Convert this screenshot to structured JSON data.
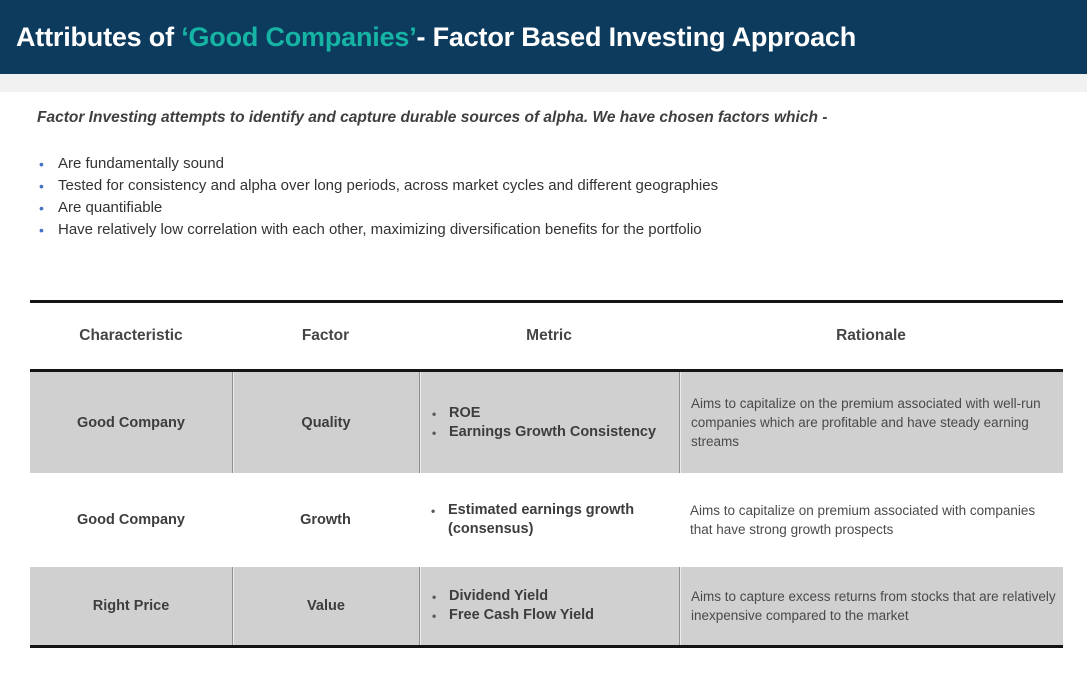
{
  "header": {
    "title_prefix": "Attributes of ",
    "title_highlight": "‘Good Companies’",
    "title_suffix": "- Factor Based Investing Approach"
  },
  "intro": "Factor Investing attempts to identify and capture durable sources of alpha. We have chosen factors which -",
  "bullets": [
    "Are fundamentally sound",
    "Tested for consistency and alpha over long periods, across market cycles and different geographies",
    "Are quantifiable",
    "Have relatively low correlation with each other, maximizing diversification benefits for the portfolio"
  ],
  "table": {
    "columns": [
      "Characteristic",
      "Factor",
      "Metric",
      "Rationale"
    ],
    "rows": [
      {
        "characteristic": "Good Company",
        "factor": "Quality",
        "metrics": [
          "ROE",
          "Earnings Growth Consistency"
        ],
        "rationale": "Aims to capitalize on the premium associated with well-run companies which are profitable and have steady earning streams",
        "shaded": true
      },
      {
        "characteristic": "Good Company",
        "factor": "Growth",
        "metrics": [
          "Estimated earnings growth (consensus)"
        ],
        "rationale": "Aims to capitalize on premium associated with companies that have strong growth prospects",
        "shaded": false
      },
      {
        "characteristic": "Right Price",
        "factor": "Value",
        "metrics": [
          "Dividend Yield",
          "Free Cash Flow Yield"
        ],
        "rationale": "Aims to capture excess returns from stocks that are relatively inexpensive compared to the market",
        "shaded": true
      }
    ]
  },
  "colors": {
    "navy_header": "#0D3B5E",
    "teal_accent": "#15B4A4",
    "row_shade_gray": "#D0D0D0",
    "divider_gray": "#8F8F8F",
    "bullet_blue": "#4472C4",
    "rule_black": "#141414",
    "strip_gray": "#F1F1F1"
  }
}
